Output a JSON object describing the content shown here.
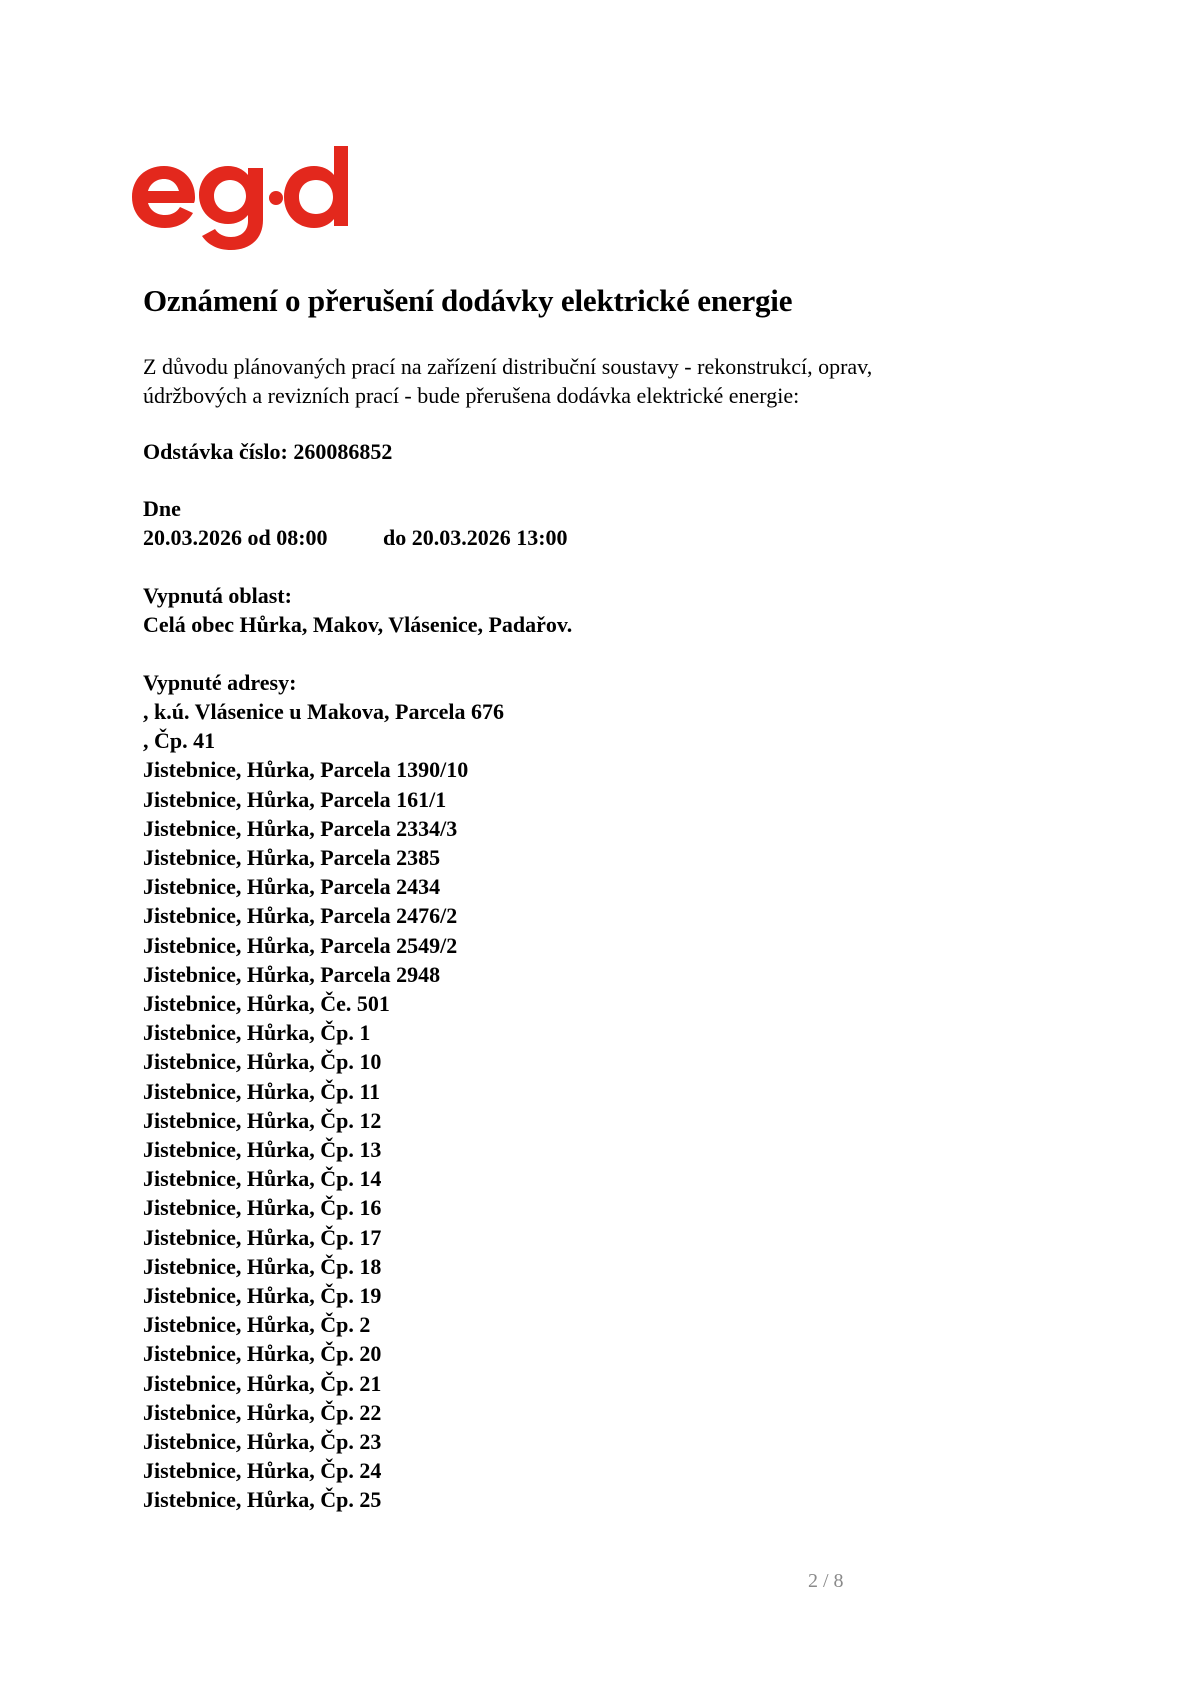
{
  "logo": {
    "text": "eg·d",
    "color": "#e3281d"
  },
  "title": "Oznámení o přerušení dodávky elektrické energie",
  "intro": [
    "Z důvodu plánovaných prací na zařízení distribuční soustavy - rekonstrukcí, oprav,",
    "údržbových a revizních prací - bude přerušena dodávka elektrické energie:"
  ],
  "outage_number": "Odstávka číslo: 260086852",
  "date": {
    "label": "Dne",
    "from": "20.03.2026 od 08:00",
    "to": "do 20.03.2026 13:00"
  },
  "area": {
    "label": "Vypnutá oblast:",
    "value": "Celá obec Hůrka, Makov, Vlásenice, Padařov."
  },
  "addresses": {
    "label": "Vypnuté adresy:",
    "items": [
      ", k.ú. Vlásenice u Makova, Parcela 676",
      ", Čp. 41",
      "Jistebnice, Hůrka, Parcela 1390/10",
      "Jistebnice, Hůrka, Parcela 161/1",
      "Jistebnice, Hůrka, Parcela 2334/3",
      "Jistebnice, Hůrka, Parcela 2385",
      "Jistebnice, Hůrka, Parcela 2434",
      "Jistebnice, Hůrka, Parcela 2476/2",
      "Jistebnice, Hůrka, Parcela 2549/2",
      "Jistebnice, Hůrka, Parcela 2948",
      "Jistebnice, Hůrka, Če. 501",
      "Jistebnice, Hůrka, Čp. 1",
      "Jistebnice, Hůrka, Čp. 10",
      "Jistebnice, Hůrka, Čp. 11",
      "Jistebnice, Hůrka, Čp. 12",
      "Jistebnice, Hůrka, Čp. 13",
      "Jistebnice, Hůrka, Čp. 14",
      "Jistebnice, Hůrka, Čp. 16",
      "Jistebnice, Hůrka, Čp. 17",
      "Jistebnice, Hůrka, Čp. 18",
      "Jistebnice, Hůrka, Čp. 19",
      "Jistebnice, Hůrka, Čp. 2",
      "Jistebnice, Hůrka, Čp. 20",
      "Jistebnice, Hůrka, Čp. 21",
      "Jistebnice, Hůrka, Čp. 22",
      "Jistebnice, Hůrka, Čp. 23",
      "Jistebnice, Hůrka, Čp. 24",
      "Jistebnice, Hůrka, Čp. 25"
    ]
  },
  "page": "2 / 8"
}
